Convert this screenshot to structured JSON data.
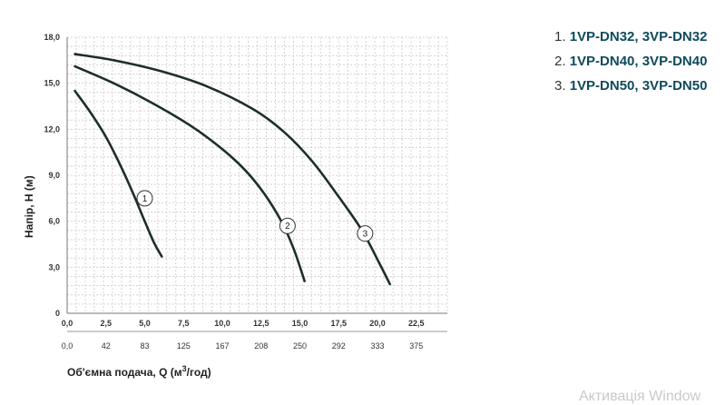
{
  "chart_data": {
    "type": "line",
    "xlabel": "Об'ємна подача, Q (м",
    "xlabel_sup": "3",
    "xlabel_tail": "/год)",
    "ylabel": "Напір, Н (м)",
    "x_ticks": [
      "0,0",
      "2,5",
      "5,0",
      "7,5",
      "10,0",
      "12,5",
      "15,0",
      "17,5",
      "20,0",
      "22,5"
    ],
    "x_ticks_secondary": [
      "0,0",
      "42",
      "83",
      "125",
      "167",
      "208",
      "250",
      "292",
      "333",
      "375"
    ],
    "y_ticks": [
      "0",
      "3,0",
      "6,0",
      "9,0",
      "12,0",
      "15,0",
      "18,0"
    ],
    "y_tick_values": [
      0,
      3,
      6,
      9,
      12,
      15,
      18
    ],
    "xlim": [
      0,
      24.5
    ],
    "ylim": [
      0,
      18
    ],
    "grid": true,
    "series": [
      {
        "name": "1",
        "x": [
          0.5,
          1.5,
          2.5,
          3.5,
          4.3,
          5.0,
          5.6,
          6.1
        ],
        "y": [
          14.5,
          13.1,
          11.5,
          9.5,
          7.7,
          6.0,
          4.6,
          3.7
        ]
      },
      {
        "name": "2",
        "x": [
          0.5,
          3.0,
          5.5,
          8.0,
          10.0,
          11.5,
          12.7,
          13.8,
          14.6,
          15.3
        ],
        "y": [
          16.1,
          15.0,
          13.7,
          12.2,
          10.7,
          9.3,
          7.8,
          6.0,
          4.2,
          2.1
        ]
      },
      {
        "name": "3",
        "x": [
          0.5,
          3.0,
          6.0,
          9.0,
          12.0,
          14.0,
          15.8,
          17.5,
          19.0,
          20.1,
          20.8
        ],
        "y": [
          16.9,
          16.5,
          15.8,
          14.8,
          13.3,
          11.8,
          9.9,
          7.6,
          5.4,
          3.3,
          1.9
        ]
      }
    ],
    "markers": [
      {
        "label": "1",
        "x": 5.0,
        "y": 7.5
      },
      {
        "label": "2",
        "x": 14.2,
        "y": 5.7
      },
      {
        "label": "3",
        "x": 19.2,
        "y": 5.2
      }
    ]
  },
  "legend": [
    {
      "num": "1.",
      "label": "1VP-DN32, 3VP-DN32"
    },
    {
      "num": "2.",
      "label": "1VP-DN40, 3VP-DN40"
    },
    {
      "num": "3.",
      "label": "1VP-DN50, 3VP-DN50"
    }
  ],
  "watermark": "Активація Window",
  "colors": {
    "curve": "#1e2e2e",
    "grid": "#d4d4d4",
    "axis": "#888888",
    "legend_text": "#0f4a5c"
  }
}
